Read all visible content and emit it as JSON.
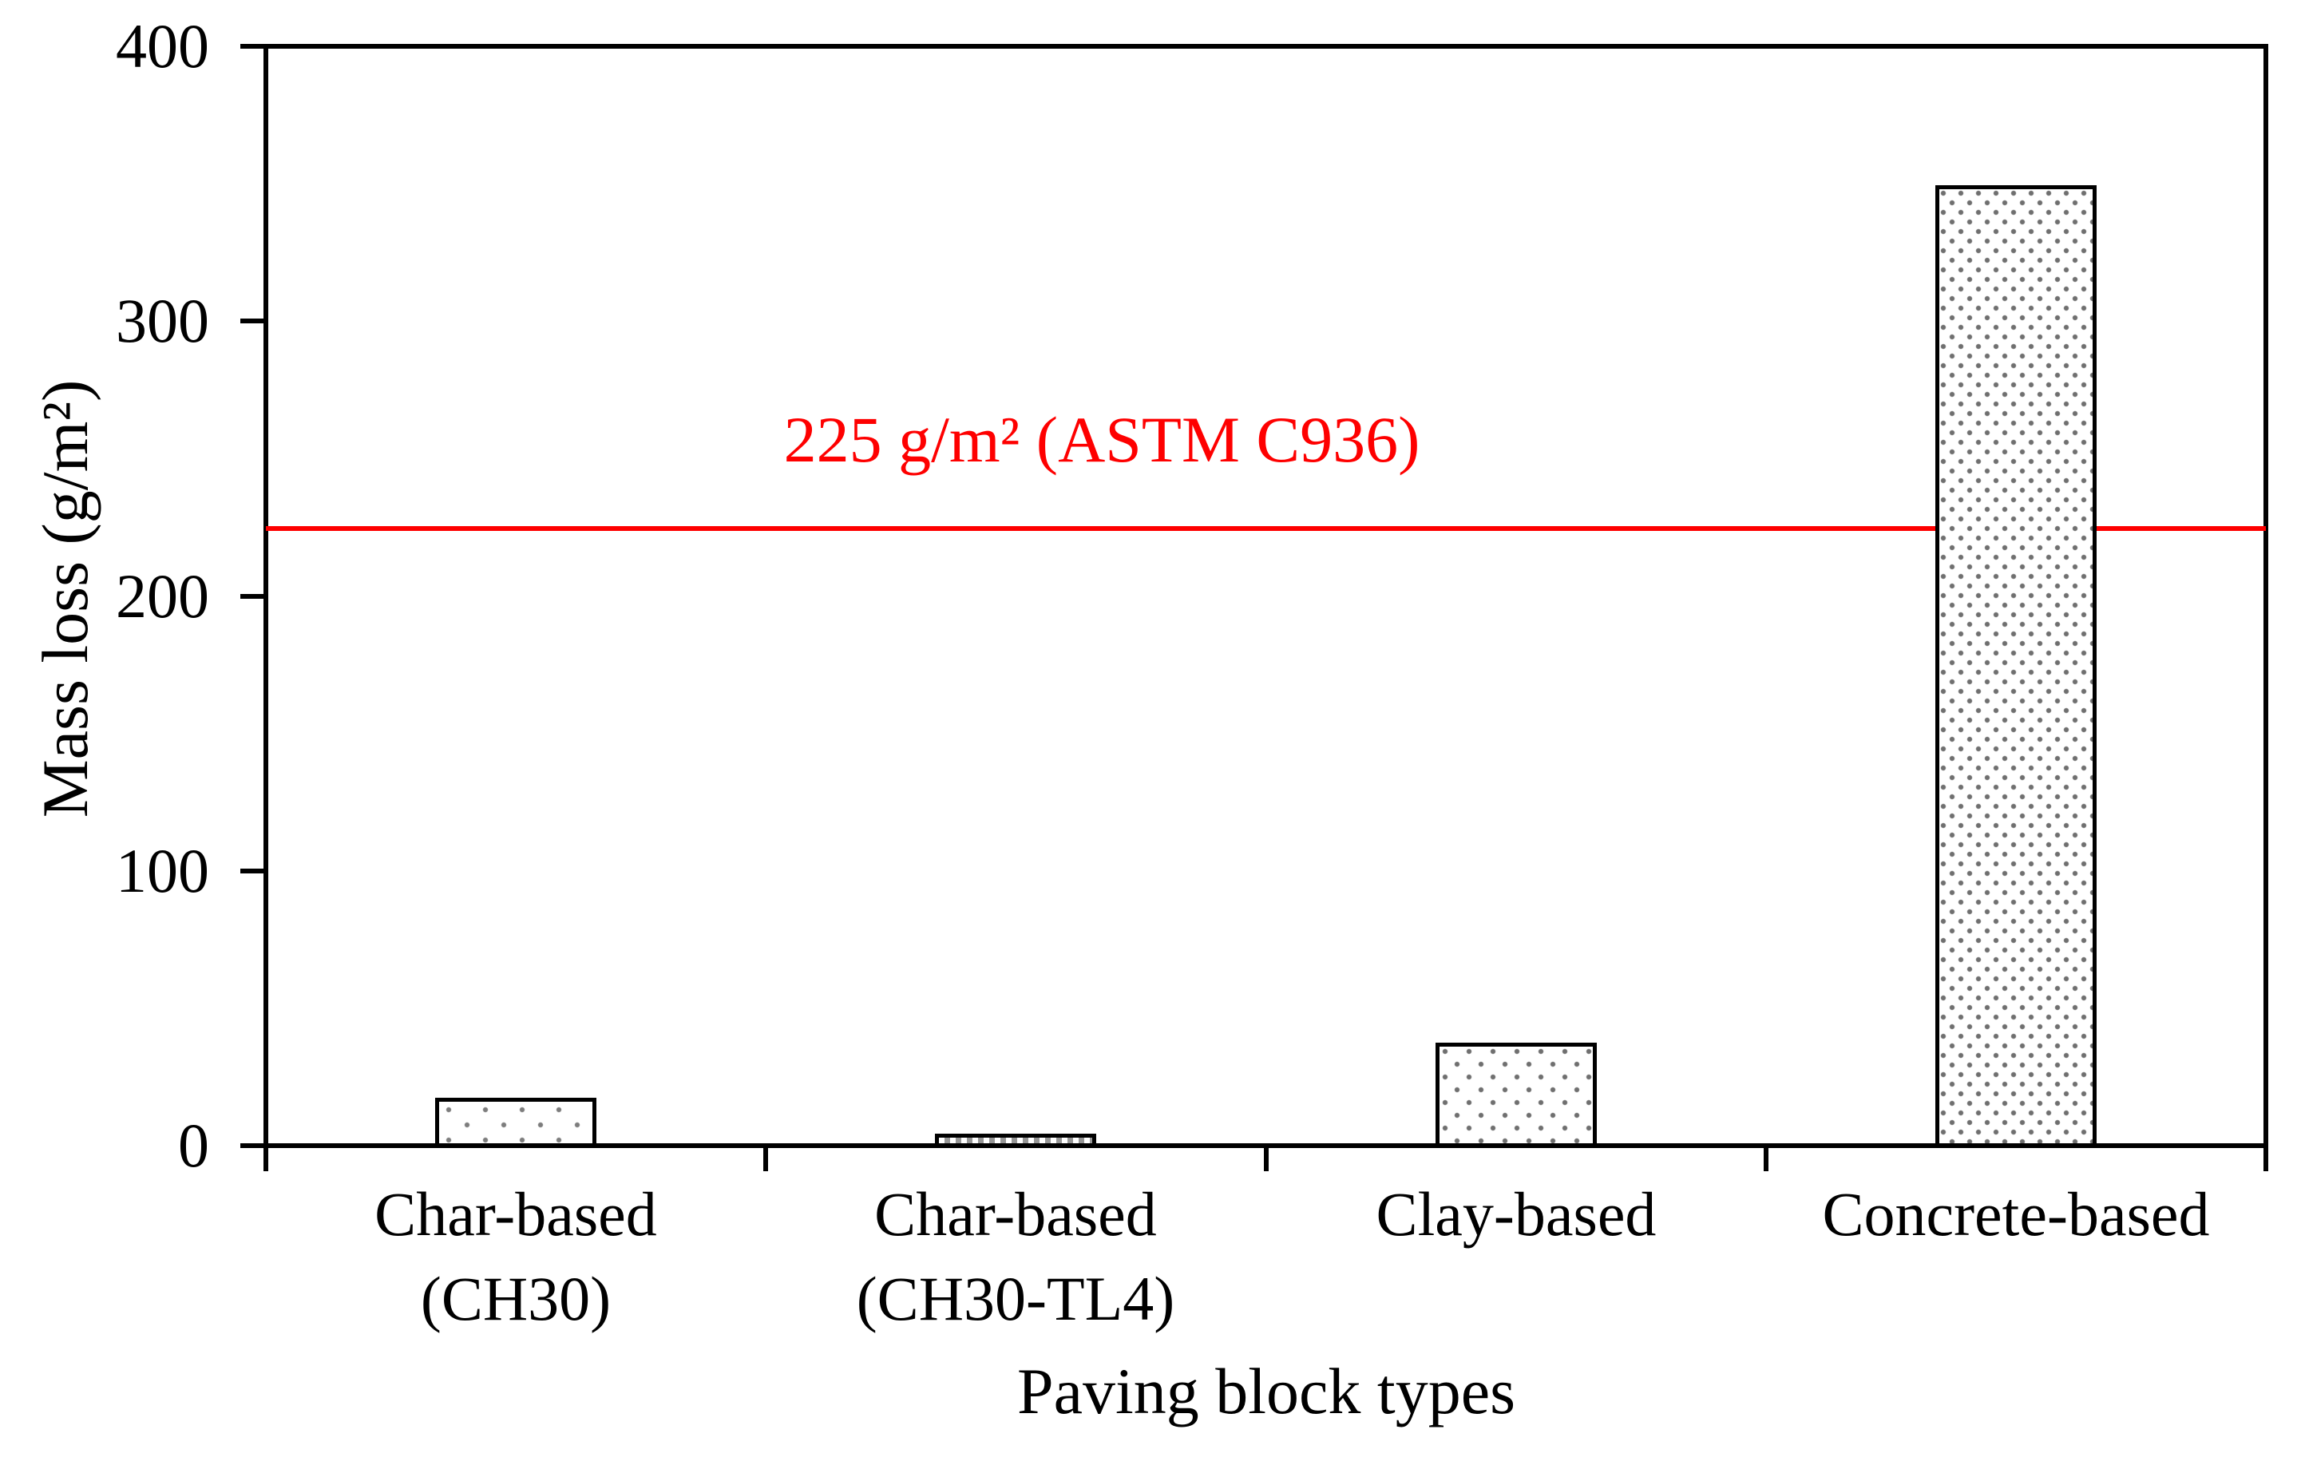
{
  "figure": {
    "background_color": "#ffffff",
    "axis_color": "#000000",
    "reference_color": "#fe0000"
  },
  "chart_data": {
    "type": "bar",
    "title": "",
    "categories": [
      "Char-based (CH30)",
      "Char-based (CH30-TL4)",
      "Clay-based",
      "Concrete-based"
    ],
    "values": [
      18,
      5,
      38,
      350
    ],
    "xlabel": "Paving block types",
    "ylabel": "Mass loss (g/m²)",
    "ylim": [
      0,
      400
    ],
    "yticks": [
      0,
      100,
      200,
      300,
      400
    ],
    "grid": false,
    "legend": false,
    "bar_patterns": [
      "dots-sparse",
      "checker-fine",
      "dots-medium",
      "dots-dense"
    ],
    "reference_line": {
      "value": 225,
      "label": "225 g/m² (ASTM C936)",
      "color": "#fe0000"
    }
  }
}
